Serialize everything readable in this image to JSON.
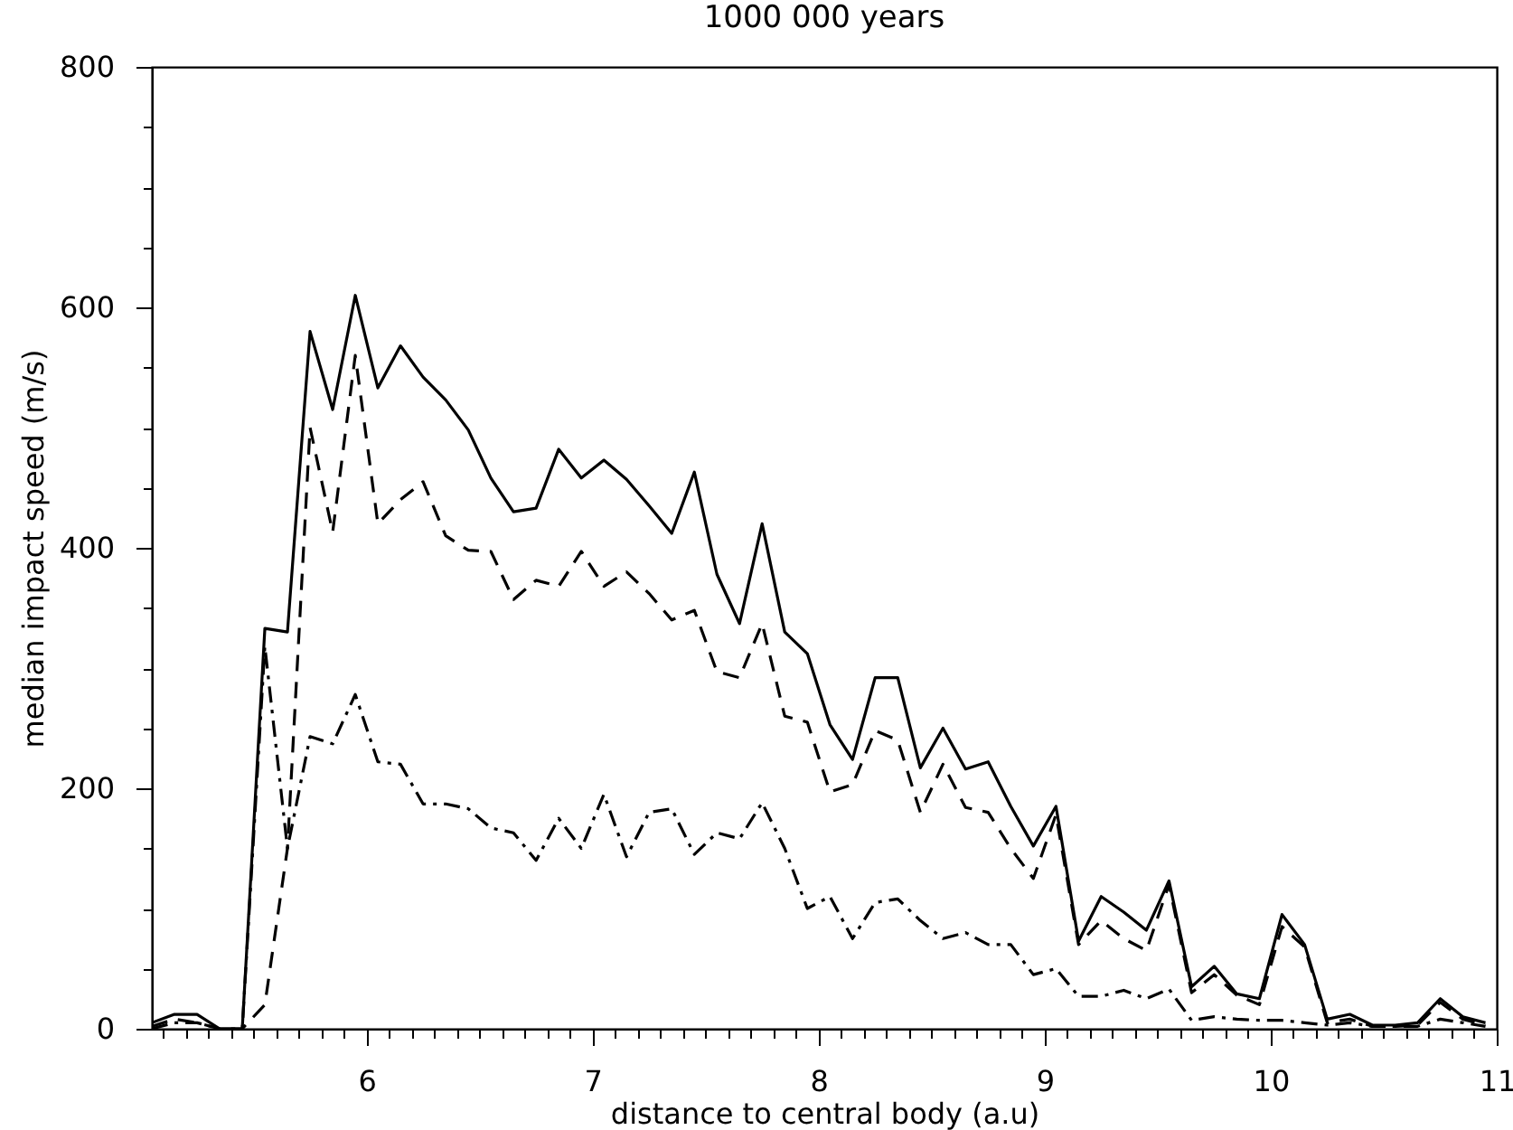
{
  "chart_data": {
    "type": "line",
    "title": "1000 000 years",
    "xlabel": "distance to central body (a.u)",
    "ylabel": "median impact speed (m/s)",
    "x": [
      5.05,
      5.15,
      5.25,
      5.35,
      5.45,
      5.55,
      5.65,
      5.75,
      5.85,
      5.95,
      6.05,
      6.15,
      6.25,
      6.35,
      6.45,
      6.55,
      6.65,
      6.75,
      6.85,
      6.95,
      7.05,
      7.15,
      7.25,
      7.35,
      7.45,
      7.55,
      7.65,
      7.75,
      7.85,
      7.95,
      8.05,
      8.15,
      8.25,
      8.35,
      8.45,
      8.55,
      8.65,
      8.75,
      8.85,
      8.95,
      9.05,
      9.15,
      9.25,
      9.35,
      9.45,
      9.55,
      9.65,
      9.75,
      9.85,
      9.95,
      10.05,
      10.15,
      10.25,
      10.35,
      10.45,
      10.55,
      10.65,
      10.75,
      10.85,
      10.95
    ],
    "series": [
      {
        "color": "#000000",
        "line_style": "solid",
        "values": [
          5,
          12,
          12,
          0,
          0,
          333,
          330,
          580,
          515,
          610,
          533,
          568,
          542,
          523,
          498,
          458,
          430,
          433,
          482,
          458,
          473,
          457,
          435,
          412,
          463,
          378,
          337,
          420,
          330,
          312,
          253,
          224,
          292,
          292,
          217,
          250,
          216,
          222,
          185,
          152,
          185,
          73,
          110,
          97,
          82,
          123,
          35,
          52,
          29,
          25,
          95,
          70,
          8,
          12,
          3,
          3,
          5,
          25,
          10,
          5
        ]
      },
      {
        "color": "#000000",
        "line_style": "dashed",
        "values": [
          2,
          8,
          5,
          0,
          0,
          20,
          150,
          500,
          413,
          560,
          420,
          440,
          455,
          410,
          398,
          397,
          357,
          373,
          368,
          397,
          368,
          380,
          362,
          340,
          348,
          297,
          292,
          337,
          260,
          255,
          197,
          203,
          248,
          240,
          180,
          220,
          184,
          180,
          150,
          125,
          178,
          70,
          90,
          75,
          65,
          120,
          30,
          45,
          28,
          20,
          85,
          68,
          5,
          8,
          2,
          2,
          3,
          22,
          8,
          3
        ]
      },
      {
        "color": "#000000",
        "line_style": "dashdot",
        "values": [
          0,
          5,
          5,
          0,
          0,
          318,
          150,
          243,
          237,
          278,
          222,
          220,
          187,
          187,
          183,
          167,
          163,
          140,
          175,
          150,
          195,
          143,
          180,
          183,
          145,
          163,
          158,
          188,
          150,
          100,
          110,
          75,
          105,
          108,
          90,
          75,
          80,
          70,
          70,
          45,
          50,
          27,
          27,
          32,
          25,
          33,
          7,
          10,
          8,
          7,
          7,
          5,
          3,
          5,
          2,
          2,
          2,
          8,
          5,
          2
        ]
      }
    ],
    "xlim": [
      5.05,
      11
    ],
    "ylim": [
      0,
      800
    ],
    "xticks": [
      {
        "value": 5.1,
        "label": null
      },
      {
        "value": 5.2,
        "label": null
      },
      {
        "value": 5.3,
        "label": null
      },
      {
        "value": 5.4,
        "label": null
      },
      {
        "value": 5.5,
        "label": null
      },
      {
        "value": 5.6,
        "label": null
      },
      {
        "value": 5.7,
        "label": null
      },
      {
        "value": 5.8,
        "label": null
      },
      {
        "value": 5.9,
        "label": null
      },
      6,
      {
        "value": 6.1,
        "label": null
      },
      {
        "value": 6.2,
        "label": null
      },
      {
        "value": 6.3,
        "label": null
      },
      {
        "value": 6.4,
        "label": null
      },
      {
        "value": 6.5,
        "label": null
      },
      {
        "value": 6.6,
        "label": null
      },
      {
        "value": 6.7,
        "label": null
      },
      {
        "value": 6.8,
        "label": null
      },
      {
        "value": 6.9,
        "label": null
      },
      7,
      {
        "value": 7.1,
        "label": null
      },
      {
        "value": 7.2,
        "label": null
      },
      {
        "value": 7.3,
        "label": null
      },
      {
        "value": 7.4,
        "label": null
      },
      {
        "value": 7.5,
        "label": null
      },
      {
        "value": 7.6,
        "label": null
      },
      {
        "value": 7.7,
        "label": null
      },
      {
        "value": 7.8,
        "label": null
      },
      {
        "value": 7.9,
        "label": null
      },
      8,
      {
        "value": 8.1,
        "label": null
      },
      {
        "value": 8.2,
        "label": null
      },
      {
        "value": 8.3,
        "label": null
      },
      {
        "value": 8.4,
        "label": null
      },
      {
        "value": 8.5,
        "label": null
      },
      {
        "value": 8.6,
        "label": null
      },
      {
        "value": 8.7,
        "label": null
      },
      {
        "value": 8.8,
        "label": null
      },
      {
        "value": 8.9,
        "label": null
      },
      9,
      {
        "value": 9.1,
        "label": null
      },
      {
        "value": 9.2,
        "label": null
      },
      {
        "value": 9.3,
        "label": null
      },
      {
        "value": 9.4,
        "label": null
      },
      {
        "value": 9.5,
        "label": null
      },
      {
        "value": 9.6,
        "label": null
      },
      {
        "value": 9.7,
        "label": null
      },
      {
        "value": 9.8,
        "label": null
      },
      {
        "value": 9.9,
        "label": null
      },
      10,
      {
        "value": 10.1,
        "label": null
      },
      {
        "value": 10.2,
        "label": null
      },
      {
        "value": 10.3,
        "label": null
      },
      {
        "value": 10.4,
        "label": null
      },
      {
        "value": 10.5,
        "label": null
      },
      {
        "value": 10.6,
        "label": null
      },
      {
        "value": 10.7,
        "label": null
      },
      {
        "value": 10.8,
        "label": null
      },
      {
        "value": 10.9,
        "label": null
      },
      11
    ],
    "yticks": [
      0,
      {
        "value": 50,
        "label": null
      },
      {
        "value": 100,
        "label": null
      },
      {
        "value": 150,
        "label": null
      },
      200,
      {
        "value": 250,
        "label": null
      },
      {
        "value": 300,
        "label": null
      },
      {
        "value": 350,
        "label": null
      },
      400,
      {
        "value": 450,
        "label": null
      },
      {
        "value": 500,
        "label": null
      },
      {
        "value": 550,
        "label": null
      },
      600,
      {
        "value": 650,
        "label": null
      },
      {
        "value": 700,
        "label": null
      },
      {
        "value": 750,
        "label": null
      },
      800
    ]
  }
}
